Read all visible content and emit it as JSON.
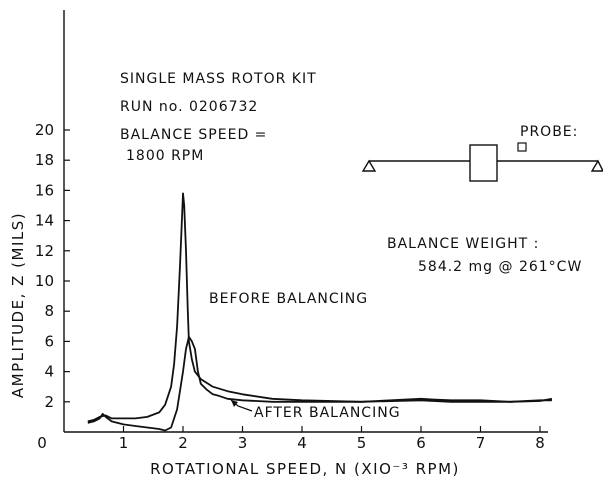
{
  "chart_data": {
    "type": "line",
    "xlabel": "ROTATIONAL SPEED, N (XIO⁻³ RPM)",
    "ylabel": "AMPLITUDE, Z (MILS)",
    "xlim": [
      0,
      8.5
    ],
    "ylim": [
      0,
      22
    ],
    "x_ticks": [
      0,
      1,
      2,
      3,
      4,
      5,
      6,
      7,
      8
    ],
    "y_ticks": [
      2,
      4,
      6,
      8,
      10,
      12,
      14,
      16,
      18,
      20
    ],
    "x_tick_labels": [
      "0",
      "1",
      "2",
      "3",
      "4",
      "5",
      "6",
      "7",
      "8"
    ],
    "y_tick_labels": [
      "2",
      "4",
      "6",
      "8",
      "10",
      "12",
      "14",
      "16",
      "18",
      "20"
    ],
    "series": [
      {
        "name": "BEFORE BALANCING",
        "x": [
          0.4,
          0.5,
          0.6,
          0.7,
          0.8,
          1.0,
          1.2,
          1.4,
          1.6,
          1.7,
          1.8,
          1.85,
          1.9,
          1.95,
          2.0,
          2.02,
          2.05,
          2.08,
          2.1,
          2.15,
          2.2,
          2.3,
          2.5,
          2.75,
          3.0,
          3.5,
          4.0,
          5.0,
          5.5,
          6.0,
          6.2,
          6.5,
          7.0,
          7.5,
          8.0,
          8.2
        ],
        "y": [
          0.7,
          0.8,
          1.0,
          1.1,
          0.9,
          0.9,
          0.9,
          1.0,
          1.3,
          1.8,
          3.0,
          4.5,
          7.0,
          11.0,
          15.8,
          15.0,
          12.0,
          8.0,
          6.0,
          4.8,
          4.0,
          3.5,
          3.0,
          2.7,
          2.5,
          2.2,
          2.1,
          2.0,
          2.1,
          2.2,
          2.15,
          2.1,
          2.1,
          2.0,
          2.05,
          2.2
        ]
      },
      {
        "name": "AFTER BALANCING",
        "x": [
          0.4,
          0.5,
          0.6,
          0.65,
          0.7,
          0.8,
          1.0,
          1.2,
          1.4,
          1.6,
          1.7,
          1.8,
          1.9,
          2.0,
          2.05,
          2.1,
          2.15,
          2.2,
          2.25,
          2.3,
          2.4,
          2.5,
          2.6,
          2.75,
          3.0,
          3.5,
          4.0,
          5.0,
          6.0,
          6.5,
          7.0,
          7.5,
          8.0,
          8.2
        ],
        "y": [
          0.6,
          0.7,
          0.9,
          1.2,
          1.0,
          0.7,
          0.5,
          0.4,
          0.3,
          0.2,
          0.1,
          0.3,
          1.5,
          4.0,
          5.5,
          6.3,
          6.0,
          5.5,
          4.0,
          3.2,
          2.8,
          2.5,
          2.4,
          2.2,
          2.1,
          2.0,
          2.0,
          2.0,
          2.1,
          2.0,
          2.0,
          2.0,
          2.1,
          2.1
        ]
      }
    ]
  },
  "annotations": {
    "title": "SINGLE MASS ROTOR KIT",
    "run": "RUN no. 0206732",
    "balance_speed_label": "BALANCE SPEED =",
    "balance_speed_value": "1800 RPM",
    "probe_label": "PROBE:",
    "balance_weight_label": "BALANCE WEIGHT :",
    "balance_weight_value": "584.2 mg @ 261°CW",
    "before_label": "BEFORE BALANCING",
    "after_label": "AFTER BALANCING"
  }
}
